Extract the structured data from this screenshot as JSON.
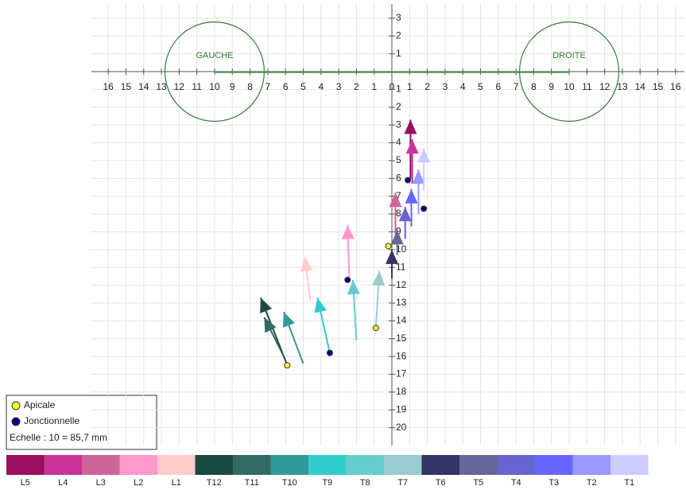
{
  "chart_data": {
    "type": "vector",
    "xlim": [
      -16.5,
      16.5
    ],
    "ylim": [
      -21,
      3.8
    ],
    "xticks": [
      {
        "value": -16,
        "label": "16"
      },
      {
        "value": -15,
        "label": "15"
      },
      {
        "value": -14,
        "label": "14"
      },
      {
        "value": -13,
        "label": "13"
      },
      {
        "value": -12,
        "label": "12"
      },
      {
        "value": -11,
        "label": "11"
      },
      {
        "value": -10,
        "label": "10"
      },
      {
        "value": -9,
        "label": "9"
      },
      {
        "value": -8,
        "label": "8"
      },
      {
        "value": -7,
        "label": "7"
      },
      {
        "value": -6,
        "label": "6"
      },
      {
        "value": -5,
        "label": "5"
      },
      {
        "value": -4,
        "label": "4"
      },
      {
        "value": -3,
        "label": "3"
      },
      {
        "value": -2,
        "label": "2"
      },
      {
        "value": -1,
        "label": "1"
      },
      0,
      1,
      2,
      3,
      4,
      5,
      6,
      7,
      8,
      9,
      10,
      11,
      12,
      13,
      14,
      15,
      16
    ],
    "yticks": [
      3,
      2,
      1,
      {
        "value": -1,
        "label": "1"
      },
      {
        "value": -2,
        "label": "2"
      },
      {
        "value": -3,
        "label": "3"
      },
      {
        "value": -4,
        "label": "4"
      },
      {
        "value": -5,
        "label": "5"
      },
      {
        "value": -6,
        "label": "6"
      },
      {
        "value": -7,
        "label": "7"
      },
      {
        "value": -8,
        "label": "8"
      },
      {
        "value": -9,
        "label": "9"
      },
      {
        "value": -10,
        "label": "10"
      },
      {
        "value": -11,
        "label": "11"
      },
      {
        "value": -12,
        "label": "12"
      },
      {
        "value": -13,
        "label": "13"
      },
      {
        "value": -14,
        "label": "14"
      },
      {
        "value": -15,
        "label": "15"
      },
      {
        "value": -16,
        "label": "16"
      },
      {
        "value": -17,
        "label": "17"
      },
      {
        "value": -18,
        "label": "18"
      },
      {
        "value": -19,
        "label": "19"
      },
      {
        "value": -20,
        "label": "20"
      }
    ],
    "grid": true,
    "annotations": [
      {
        "text": "GAUCHE",
        "x": -10,
        "y": 0,
        "r": 2.8
      },
      {
        "text": "DROITE",
        "x": 10,
        "y": 0,
        "r": 2.8
      }
    ],
    "series": [
      {
        "name": "L5",
        "color": "#9b0f5e",
        "x": [
          1.05,
          1.05
        ],
        "y": [
          -6,
          -2.7
        ]
      },
      {
        "name": "L4",
        "color": "#cc3399",
        "x": [
          1.15,
          1.15
        ],
        "y": [
          -6.3,
          -3.8
        ]
      },
      {
        "name": "L3",
        "color": "#cc6699",
        "x": [
          0.2,
          0.2
        ],
        "y": [
          -9.4,
          -6.8
        ]
      },
      {
        "name": "L2",
        "color": "#ff99cc",
        "x": [
          -2.4,
          -2.5
        ],
        "y": [
          -11.6,
          -8.6
        ]
      },
      {
        "name": "L1",
        "color": "#ffcccc",
        "x": [
          -4.6,
          -4.9
        ],
        "y": [
          -12.9,
          -10.4
        ]
      },
      {
        "name": "T12",
        "color": "#1a4a40",
        "x": [
          -5.9,
          -7.4
        ],
        "y": [
          -16.5,
          -12.7
        ]
      },
      {
        "name": "T11",
        "color": "#336b63",
        "x": [
          -6.1,
          -7.2
        ],
        "y": [
          -16,
          -13.8
        ]
      },
      {
        "name": "T10",
        "color": "#339999",
        "x": [
          -5,
          -6.1
        ],
        "y": [
          -16.4,
          -13.5
        ]
      },
      {
        "name": "T9",
        "color": "#33cccc",
        "x": [
          -3.5,
          -4.2
        ],
        "y": [
          -15.8,
          -12.7
        ]
      },
      {
        "name": "T8",
        "color": "#66cccc",
        "x": [
          -2,
          -2.2
        ],
        "y": [
          -15.1,
          -11.7
        ]
      },
      {
        "name": "T7",
        "color": "#99cccc",
        "x": [
          -0.9,
          -0.7
        ],
        "y": [
          -14.3,
          -11.2
        ]
      },
      {
        "name": "T6",
        "color": "#333366",
        "x": [
          0,
          0
        ],
        "y": [
          -11.6,
          -10
        ]
      },
      {
        "name": "T5",
        "color": "#666699",
        "x": [
          0.3,
          0.3
        ],
        "y": [
          -10.3,
          -8.9
        ]
      },
      {
        "name": "T4",
        "color": "#6666cc",
        "x": [
          0.75,
          0.75
        ],
        "y": [
          -9.4,
          -7.6
        ]
      },
      {
        "name": "T3",
        "color": "#6666ff",
        "x": [
          1.1,
          1.1
        ],
        "y": [
          -8.7,
          -6.6
        ]
      },
      {
        "name": "T2",
        "color": "#9999ff",
        "x": [
          1.5,
          1.5
        ],
        "y": [
          -8,
          -5.5
        ]
      },
      {
        "name": "T1",
        "color": "#ccccff",
        "x": [
          1.8,
          1.8
        ],
        "y": [
          -6.7,
          -4.3
        ]
      }
    ],
    "points": [
      {
        "name": "Apicale",
        "color": "#ffff33",
        "x": [
          -5.9,
          -0.9,
          -0.2
        ],
        "y": [
          -16.5,
          -14.4,
          -9.8
        ]
      },
      {
        "name": "Jonctionnelle",
        "color": "#000080",
        "x": [
          -3.5,
          -2.5,
          1.8,
          0.9
        ],
        "y": [
          -15.8,
          -11.7,
          -7.7,
          -6.1
        ]
      }
    ],
    "scale_note": "Echelle : 10 = 85,7 mm"
  }
}
